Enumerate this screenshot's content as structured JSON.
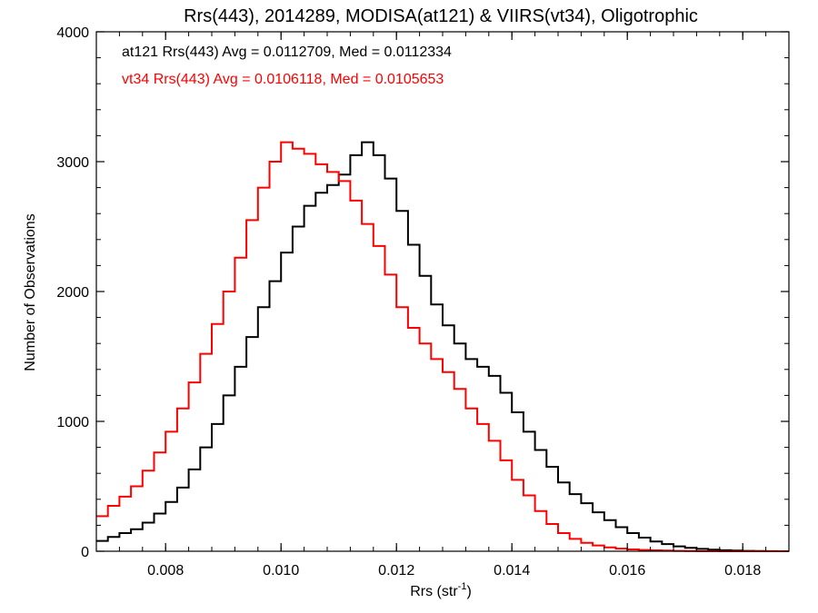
{
  "chart_data": {
    "type": "line",
    "title": "Rrs(443), 2014289, MODISA(at121) & VIIRS(vt34), Oligotrophic",
    "xlabel_main": "Rrs (str",
    "xlabel_sup": "-1",
    "xlabel_end": ")",
    "ylabel": "Number of Observations",
    "xlim": [
      0.0068,
      0.0188
    ],
    "ylim": [
      0,
      4000
    ],
    "xticks": [
      0.008,
      0.01,
      0.012,
      0.014,
      0.016,
      0.018
    ],
    "xtick_labels": [
      "0.008",
      "0.010",
      "0.012",
      "0.014",
      "0.016",
      "0.018"
    ],
    "yticks": [
      0,
      1000,
      2000,
      3000,
      4000
    ],
    "ytick_labels": [
      "0",
      "1000",
      "2000",
      "3000",
      "4000"
    ],
    "annotations": [
      "at121 Rrs(443) Avg = 0.0112709, Med = 0.0112334",
      "vt34 Rrs(443) Avg = 0.0106118, Med = 0.0105653"
    ],
    "series": [
      {
        "color": "#000000",
        "x": [
          0.0068,
          0.007,
          0.0072,
          0.0074,
          0.0076,
          0.0078,
          0.008,
          0.0082,
          0.0084,
          0.0086,
          0.0088,
          0.009,
          0.0092,
          0.0094,
          0.0096,
          0.0098,
          0.01,
          0.0102,
          0.0104,
          0.0106,
          0.0108,
          0.011,
          0.0112,
          0.0114,
          0.0116,
          0.0118,
          0.012,
          0.0122,
          0.0124,
          0.0126,
          0.0128,
          0.013,
          0.0132,
          0.0134,
          0.0136,
          0.0138,
          0.014,
          0.0142,
          0.0144,
          0.0146,
          0.0148,
          0.015,
          0.0152,
          0.0154,
          0.0156,
          0.0158,
          0.016,
          0.0162,
          0.0164,
          0.0166,
          0.0168,
          0.017,
          0.0172,
          0.0174,
          0.0176,
          0.0178,
          0.018,
          0.0182,
          0.0184,
          0.0186,
          0.0188
        ],
        "y": [
          80,
          110,
          140,
          170,
          220,
          290,
          380,
          490,
          630,
          800,
          980,
          1200,
          1420,
          1650,
          1880,
          2080,
          2300,
          2500,
          2660,
          2760,
          2820,
          2900,
          3050,
          3150,
          3050,
          2870,
          2620,
          2360,
          2120,
          1900,
          1740,
          1600,
          1480,
          1420,
          1350,
          1220,
          1070,
          920,
          780,
          650,
          530,
          440,
          370,
          300,
          240,
          185,
          140,
          105,
          75,
          55,
          38,
          26,
          18,
          12,
          8,
          5,
          3,
          2,
          1,
          0,
          0
        ]
      },
      {
        "color": "#ff0000",
        "x": [
          0.0068,
          0.007,
          0.0072,
          0.0074,
          0.0076,
          0.0078,
          0.008,
          0.0082,
          0.0084,
          0.0086,
          0.0088,
          0.009,
          0.0092,
          0.0094,
          0.0096,
          0.0098,
          0.01,
          0.0102,
          0.0104,
          0.0106,
          0.0108,
          0.011,
          0.0112,
          0.0114,
          0.0116,
          0.0118,
          0.012,
          0.0122,
          0.0124,
          0.0126,
          0.0128,
          0.013,
          0.0132,
          0.0134,
          0.0136,
          0.0138,
          0.014,
          0.0142,
          0.0144,
          0.0146,
          0.0148,
          0.015,
          0.0152,
          0.0154,
          0.0156,
          0.0158,
          0.016,
          0.0162,
          0.0164,
          0.0166,
          0.0168,
          0.017,
          0.0172,
          0.0174,
          0.0176,
          0.0178,
          0.018,
          0.0182,
          0.0184,
          0.0186,
          0.0188
        ],
        "y": [
          270,
          350,
          420,
          500,
          620,
          760,
          920,
          1100,
          1300,
          1520,
          1750,
          2000,
          2260,
          2550,
          2800,
          3000,
          3150,
          3100,
          3060,
          2980,
          2920,
          2850,
          2700,
          2520,
          2350,
          2130,
          1880,
          1720,
          1600,
          1480,
          1380,
          1250,
          1100,
          980,
          850,
          700,
          550,
          430,
          310,
          210,
          140,
          95,
          65,
          45,
          30,
          20,
          14,
          10,
          7,
          5,
          3,
          2,
          1,
          1,
          0,
          0,
          0,
          0,
          0,
          0,
          0
        ]
      }
    ]
  }
}
